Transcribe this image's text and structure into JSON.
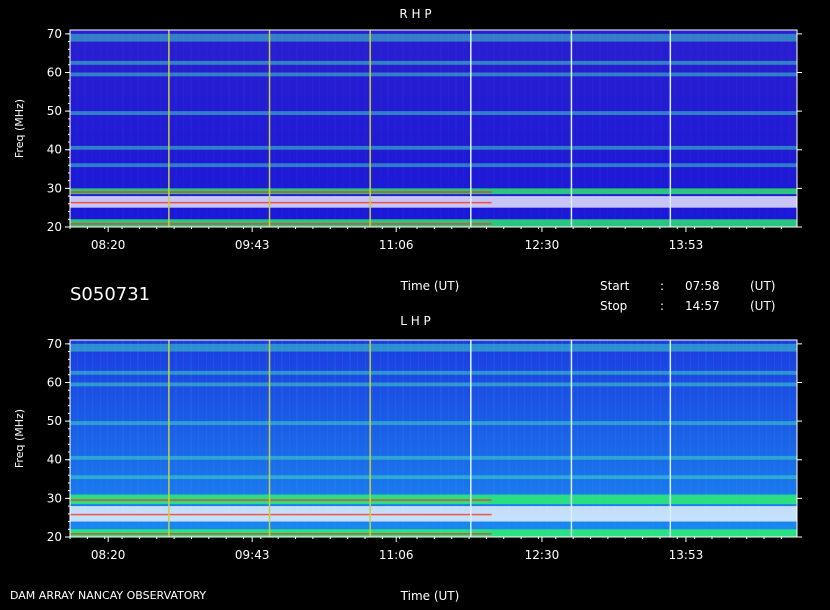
{
  "header_id": "S050731",
  "footer": "DAM ARRAY   NANCAY OBSERVATORY",
  "start": {
    "label": "Start",
    "sep": ":",
    "time": "07:58",
    "unit": "(UT)"
  },
  "stop": {
    "label": "Stop",
    "sep": ":",
    "time": "14:57",
    "unit": "(UT)"
  },
  "colors": {
    "background": "#000000",
    "axis": "#ffffff",
    "low": "#1a18d8",
    "mid": "#00d8ff",
    "high": "#ffffff"
  },
  "chart_data": [
    {
      "type": "heatmap",
      "title": "R H P",
      "xlabel": "Time (UT)",
      "ylabel": "Freq (MHz)",
      "x_ticks": [
        "08:20",
        "09:43",
        "11:06",
        "12:30",
        "13:53"
      ],
      "y_ticks": [
        20,
        30,
        40,
        50,
        60,
        70
      ],
      "ylim": [
        20,
        71
      ],
      "time_range": [
        "07:58",
        "14:57"
      ],
      "background_level": "low",
      "bright_bands_mhz": [
        [
          20,
          22
        ],
        [
          25,
          28
        ],
        [
          28.5,
          30
        ],
        [
          35.5,
          36.5
        ],
        [
          40,
          41
        ],
        [
          49,
          50
        ],
        [
          59,
          60
        ],
        [
          62,
          63
        ],
        [
          68,
          70
        ]
      ],
      "vertical_lines_ut": [
        "08:55",
        "09:53",
        "10:51",
        "11:49",
        "12:47",
        "13:44"
      ]
    },
    {
      "type": "heatmap",
      "title": "L H P",
      "xlabel": "Time (UT)",
      "ylabel": "Freq (MHz)",
      "x_ticks": [
        "08:20",
        "09:43",
        "11:06",
        "12:30",
        "13:53"
      ],
      "y_ticks": [
        20,
        30,
        40,
        50,
        60,
        70
      ],
      "ylim": [
        20,
        71
      ],
      "time_range": [
        "07:58",
        "14:57"
      ],
      "background_level": "mid",
      "bright_bands_mhz": [
        [
          20,
          22
        ],
        [
          24,
          28
        ],
        [
          28.5,
          31
        ],
        [
          35,
          36
        ],
        [
          40,
          41
        ],
        [
          49,
          50
        ],
        [
          59,
          60
        ],
        [
          62,
          63
        ],
        [
          68,
          70
        ]
      ],
      "vertical_lines_ut": [
        "08:55",
        "09:53",
        "10:51",
        "11:49",
        "12:47",
        "13:44"
      ]
    }
  ]
}
